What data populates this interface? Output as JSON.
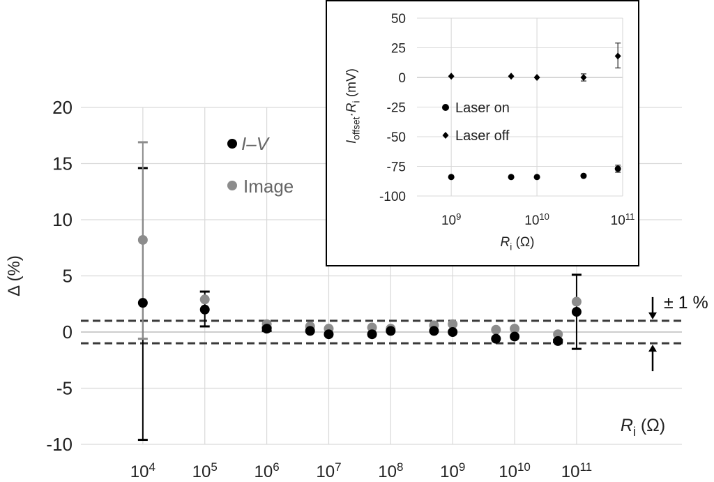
{
  "chart_data": [
    {
      "type": "scatter",
      "title": "",
      "xlabel": "R_i (Ω)",
      "ylabel": "Δ (%)",
      "x_scale": "log",
      "ylim": [
        -10,
        20
      ],
      "y_ticks": [
        -10,
        -5,
        0,
        5,
        10,
        15,
        20
      ],
      "x_tick_labels": [
        "10^4",
        "10^5",
        "10^6",
        "10^7",
        "10^8",
        "10^9",
        "10^10",
        "10^11"
      ],
      "grid": true,
      "legend_position": "top-center",
      "band_label": "± 1 %",
      "band": [
        -1,
        1
      ],
      "series": [
        {
          "name": "I–V",
          "color": "#000000",
          "x": [
            10000,
            100000,
            1000000,
            5000000,
            10000000,
            50000000,
            100000000,
            500000000,
            1000000000,
            5000000000,
            10000000000,
            50000000000,
            100000000000
          ],
          "y": [
            2.6,
            2.0,
            0.3,
            0.1,
            -0.2,
            -0.2,
            0.1,
            0.1,
            0.0,
            -0.6,
            -0.4,
            -0.8,
            1.8
          ],
          "err_low": [
            -9.6,
            0.5,
            0.1,
            null,
            null,
            null,
            null,
            null,
            null,
            null,
            null,
            -0.9,
            -1.5
          ],
          "err_high": [
            14.6,
            3.6,
            0.4,
            null,
            null,
            null,
            null,
            null,
            null,
            null,
            null,
            -0.7,
            5.1
          ]
        },
        {
          "name": "Image",
          "color": "#8c8c8c",
          "x": [
            10000,
            100000,
            1000000,
            5000000,
            10000000,
            50000000,
            100000000,
            500000000,
            1000000000,
            5000000000,
            10000000000,
            50000000000,
            100000000000
          ],
          "y": [
            8.2,
            2.9,
            0.7,
            0.5,
            0.3,
            0.4,
            0.3,
            0.6,
            0.7,
            0.2,
            0.3,
            -0.2,
            2.7
          ],
          "err_low": [
            -0.6,
            null,
            null,
            null,
            null,
            null,
            null,
            null,
            null,
            null,
            null,
            null,
            null
          ],
          "err_high": [
            16.9,
            null,
            null,
            null,
            null,
            null,
            null,
            null,
            null,
            null,
            null,
            null,
            null
          ]
        }
      ]
    },
    {
      "type": "scatter",
      "title": "",
      "xlabel": "R_i (Ω)",
      "ylabel": "I_offset·R_i (mV)",
      "x_scale": "log",
      "ylim": [
        -100,
        50
      ],
      "y_ticks": [
        -100,
        -75,
        -50,
        -25,
        0,
        25,
        50
      ],
      "x_tick_labels": [
        "10^9",
        "10^10",
        "10^11"
      ],
      "grid": true,
      "legend_position": "center-left",
      "series": [
        {
          "name": "Laser on",
          "marker": "circle",
          "color": "#000000",
          "x": [
            1000000000,
            5000000000,
            10000000000,
            35000000000,
            88000000000
          ],
          "y": [
            -84,
            -84,
            -84,
            -83,
            -77
          ],
          "err_low": [
            null,
            null,
            null,
            null,
            -80
          ],
          "err_high": [
            null,
            null,
            null,
            null,
            -74
          ]
        },
        {
          "name": "Laser off",
          "marker": "diamond",
          "color": "#000000",
          "x": [
            1000000000,
            5000000000,
            10000000000,
            35000000000,
            88000000000
          ],
          "y": [
            1,
            1,
            0,
            0,
            18
          ],
          "err_low": [
            null,
            null,
            null,
            -3,
            8
          ],
          "err_high": [
            null,
            null,
            null,
            3,
            29
          ]
        }
      ]
    }
  ]
}
